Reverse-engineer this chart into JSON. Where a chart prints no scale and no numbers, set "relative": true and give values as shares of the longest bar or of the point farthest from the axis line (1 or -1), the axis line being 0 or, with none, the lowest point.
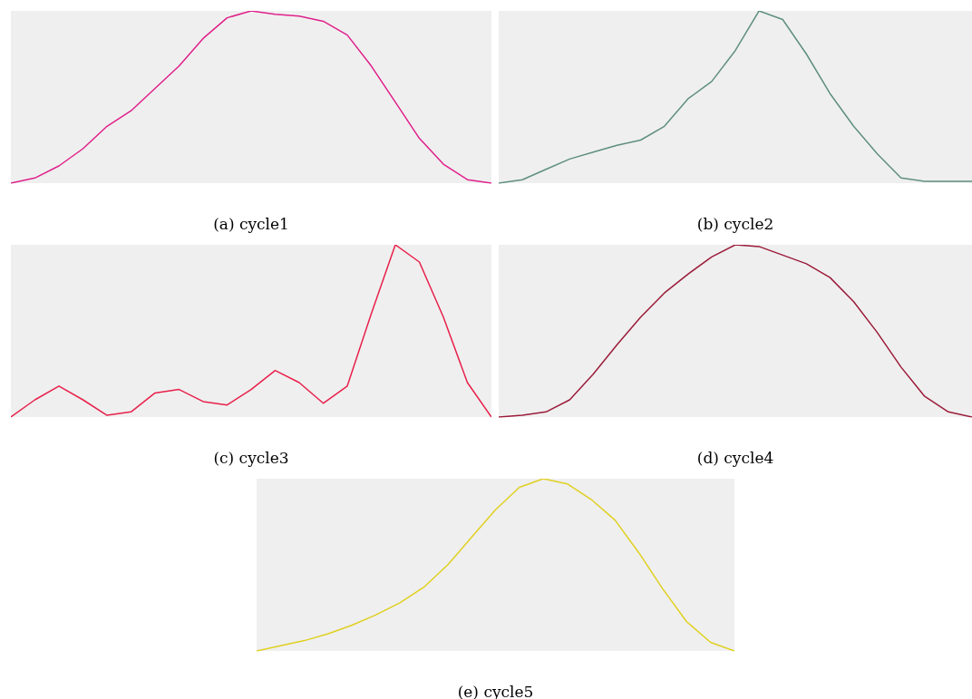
{
  "chart_data": [
    {
      "type": "line",
      "title": "(a) cycle1",
      "relative": true,
      "categories": [
        null,
        null,
        null,
        null,
        null,
        null,
        null,
        null,
        null,
        null,
        null,
        null,
        null,
        null,
        null,
        null,
        null,
        null,
        null,
        null,
        null
      ],
      "series": [
        {
          "color": "#e0208a",
          "values": [
            0,
            0.03,
            0.1,
            0.2,
            0.33,
            0.42,
            0.55,
            0.68,
            0.84,
            0.96,
            1.0,
            0.98,
            0.97,
            0.94,
            0.86,
            0.68,
            0.47,
            0.26,
            0.11,
            0.02,
            0
          ]
        }
      ]
    },
    {
      "type": "line",
      "title": "(b) cycle2",
      "relative": true,
      "categories": [
        null,
        null,
        null,
        null,
        null,
        null,
        null,
        null,
        null,
        null,
        null,
        null,
        null,
        null,
        null,
        null,
        null,
        null,
        null,
        null,
        null
      ],
      "series": [
        {
          "color": "#5f8f80",
          "values": [
            0,
            0.02,
            0.08,
            0.14,
            0.18,
            0.22,
            0.25,
            0.33,
            0.49,
            0.59,
            0.77,
            1.0,
            0.95,
            0.75,
            0.52,
            0.33,
            0.17,
            0.03,
            0.01,
            0.01,
            0.01
          ]
        }
      ]
    },
    {
      "type": "line",
      "title": "(c) cycle3",
      "relative": true,
      "categories": [
        null,
        null,
        null,
        null,
        null,
        null,
        null,
        null,
        null,
        null,
        null,
        null,
        null,
        null,
        null,
        null,
        null,
        null,
        null,
        null,
        null
      ],
      "series": [
        {
          "color": "#e8204a",
          "values": [
            0,
            0.1,
            0.18,
            0.1,
            0.01,
            0.03,
            0.14,
            0.16,
            0.09,
            0.07,
            0.16,
            0.27,
            0.2,
            0.08,
            0.18,
            0.6,
            1.0,
            0.9,
            0.58,
            0.2,
            0
          ]
        }
      ]
    },
    {
      "type": "line",
      "title": "(d) cycle4",
      "relative": true,
      "categories": [
        null,
        null,
        null,
        null,
        null,
        null,
        null,
        null,
        null,
        null,
        null,
        null,
        null,
        null,
        null,
        null,
        null,
        null,
        null,
        null,
        null
      ],
      "series": [
        {
          "color": "#9b1c3a",
          "values": [
            0,
            0.01,
            0.03,
            0.1,
            0.25,
            0.42,
            0.58,
            0.72,
            0.83,
            0.93,
            1.0,
            0.99,
            0.94,
            0.89,
            0.81,
            0.67,
            0.49,
            0.29,
            0.12,
            0.03,
            0
          ]
        }
      ]
    },
    {
      "type": "line",
      "title": "(e) cycle5",
      "relative": true,
      "categories": [
        null,
        null,
        null,
        null,
        null,
        null,
        null,
        null,
        null,
        null,
        null,
        null,
        null,
        null,
        null,
        null,
        null,
        null,
        null,
        null,
        null
      ],
      "series": [
        {
          "color": "#e0d020",
          "values": [
            0,
            0.03,
            0.06,
            0.1,
            0.15,
            0.21,
            0.28,
            0.37,
            0.5,
            0.66,
            0.82,
            0.95,
            1.0,
            0.97,
            0.88,
            0.76,
            0.57,
            0.36,
            0.17,
            0.05,
            0
          ]
        }
      ]
    }
  ]
}
